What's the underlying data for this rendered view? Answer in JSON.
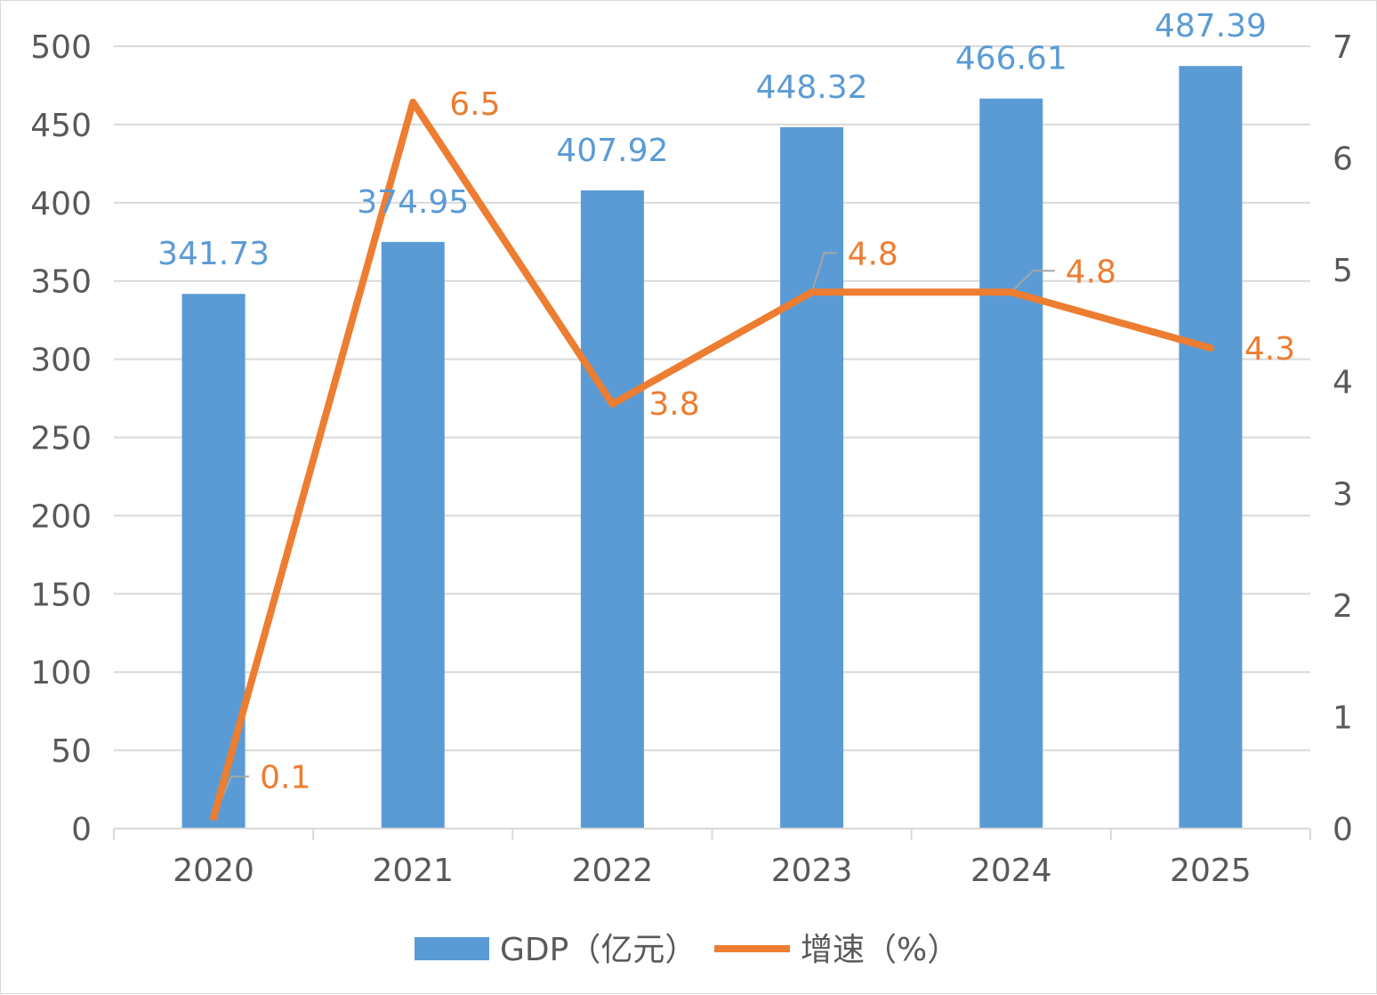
{
  "chart_data": {
    "type": "bar",
    "categories": [
      "2020",
      "2021",
      "2022",
      "2023",
      "2024",
      "2025"
    ],
    "series": [
      {
        "name": "GDP（亿元）",
        "type": "bar",
        "axis": "left",
        "color": "#5b9bd5",
        "values": [
          341.73,
          374.95,
          407.92,
          448.32,
          466.61,
          487.39
        ],
        "labels": [
          "341.73",
          "374.95",
          "407.92",
          "448.32",
          "466.61",
          "487.39"
        ]
      },
      {
        "name": "增速（%）",
        "type": "line",
        "axis": "right",
        "color": "#ed7d31",
        "values": [
          0.1,
          6.5,
          3.8,
          4.8,
          4.8,
          4.3
        ],
        "labels": [
          "0.1",
          "6.5",
          "3.8",
          "4.8",
          "4.8",
          "4.3"
        ]
      }
    ],
    "y_left": {
      "min": 0,
      "max": 500,
      "ticks": [
        "0",
        "50",
        "100",
        "150",
        "200",
        "250",
        "300",
        "350",
        "400",
        "450",
        "500"
      ]
    },
    "y_right": {
      "min": 0,
      "max": 7,
      "ticks": [
        "0",
        "1",
        "2",
        "3",
        "4",
        "5",
        "6",
        "7"
      ]
    },
    "grid": true,
    "legend": "bottom-center",
    "gridline_color": "#d9d9d9"
  }
}
